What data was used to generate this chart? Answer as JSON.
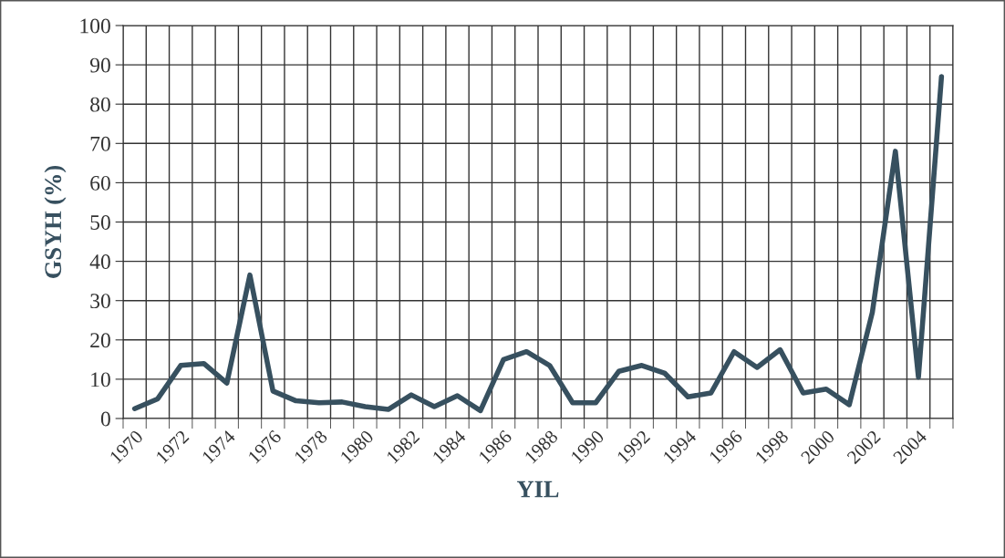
{
  "chart_data": {
    "type": "line",
    "xlabel": "YIL",
    "ylabel": "GSYH (%)",
    "categories": [
      "1970",
      null,
      "1972",
      null,
      "1974",
      null,
      "1976",
      null,
      "1978",
      null,
      "1980",
      null,
      "1982",
      null,
      "1984",
      null,
      "1986",
      null,
      "1988",
      null,
      "1990",
      null,
      "1992",
      null,
      "1994",
      null,
      "1996",
      null,
      "1998",
      null,
      "2000",
      null,
      "2002",
      null,
      "2004",
      null
    ],
    "series": [
      {
        "color": "#37505f",
        "values": [
          2.5,
          5,
          13.5,
          14,
          9,
          36.5,
          7,
          4.5,
          4,
          4.2,
          3,
          2.3,
          6,
          3,
          5.8,
          2,
          15,
          17,
          13.5,
          4,
          4,
          12,
          13.5,
          11.5,
          5.5,
          6.5,
          17,
          13,
          17.5,
          6.5,
          7.5,
          3.5,
          27,
          68,
          10.5,
          87
        ]
      }
    ],
    "ylim": [
      0,
      100
    ],
    "yticks": [
      0,
      10,
      20,
      30,
      40,
      50,
      60,
      70,
      80,
      90,
      100
    ],
    "grid": true,
    "marker": "none",
    "line_style": "solid"
  }
}
